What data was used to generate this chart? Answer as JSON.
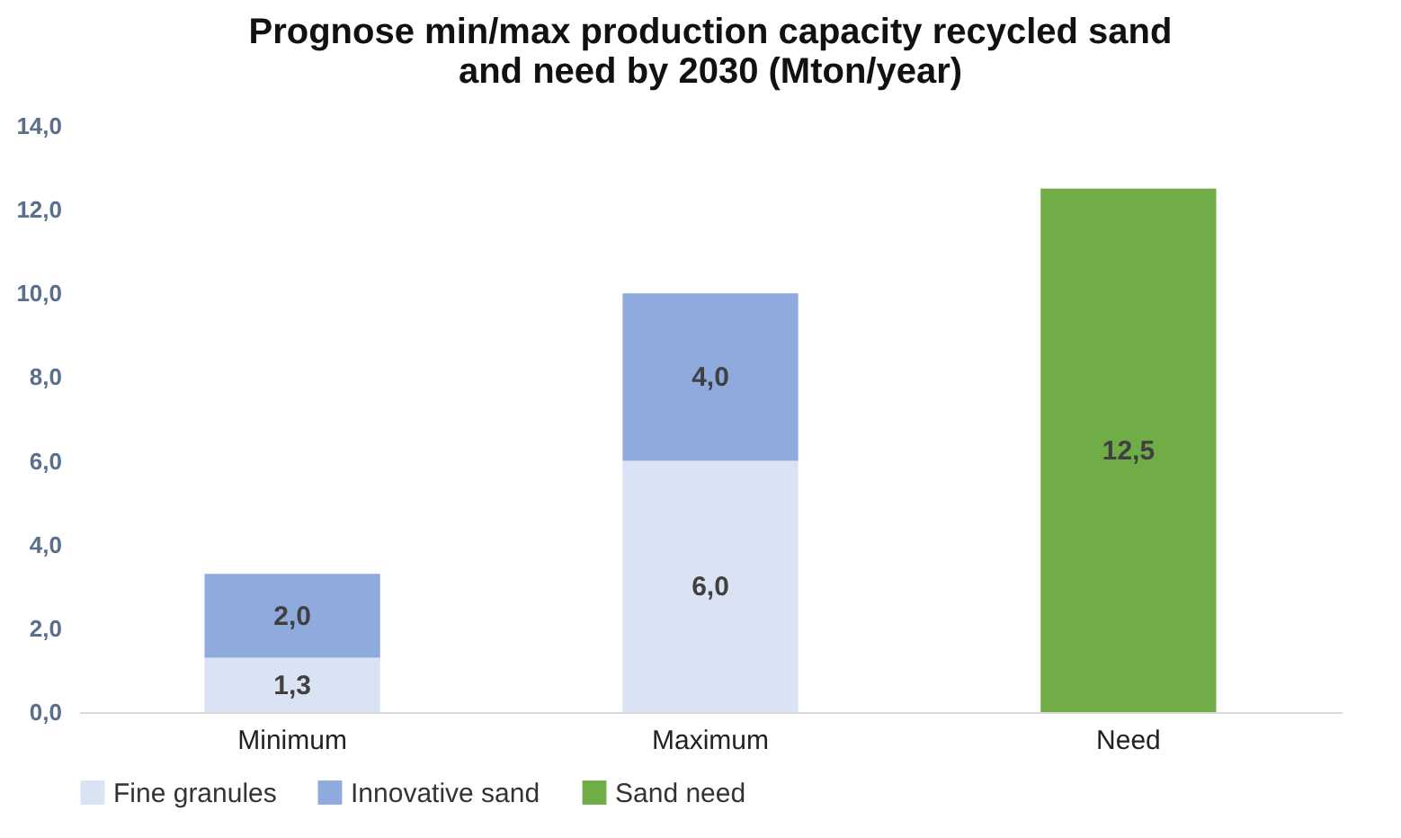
{
  "chart_data": {
    "type": "bar",
    "title": "Prognose min/max production capacity recycled sand\nand need by 2030 (Mton/year)",
    "categories": [
      "Minimum",
      "Maximum",
      "Need"
    ],
    "series": [
      {
        "name": "Fine granules",
        "color": "#dae3f3",
        "values": [
          1.3,
          6.0,
          null
        ],
        "value_labels": [
          "1,3",
          "6,0",
          null
        ]
      },
      {
        "name": "Innovative sand",
        "color": "#8faadc",
        "values": [
          2.0,
          4.0,
          null
        ],
        "value_labels": [
          "2,0",
          "4,0",
          null
        ]
      },
      {
        "name": "Sand need",
        "color": "#70ad47",
        "values": [
          null,
          null,
          12.5
        ],
        "value_labels": [
          null,
          null,
          "12,5"
        ]
      }
    ],
    "stacked": true,
    "ylim": [
      0,
      14
    ],
    "yticks": [
      {
        "value": 0,
        "label": "0,0"
      },
      {
        "value": 2,
        "label": "2,0"
      },
      {
        "value": 4,
        "label": "4,0"
      },
      {
        "value": 6,
        "label": "6,0"
      },
      {
        "value": 8,
        "label": "8,0"
      },
      {
        "value": 10,
        "label": "10,0"
      },
      {
        "value": 12,
        "label": "12,0"
      },
      {
        "value": 14,
        "label": "14,0"
      }
    ],
    "grid": false,
    "legend": "bottom"
  }
}
